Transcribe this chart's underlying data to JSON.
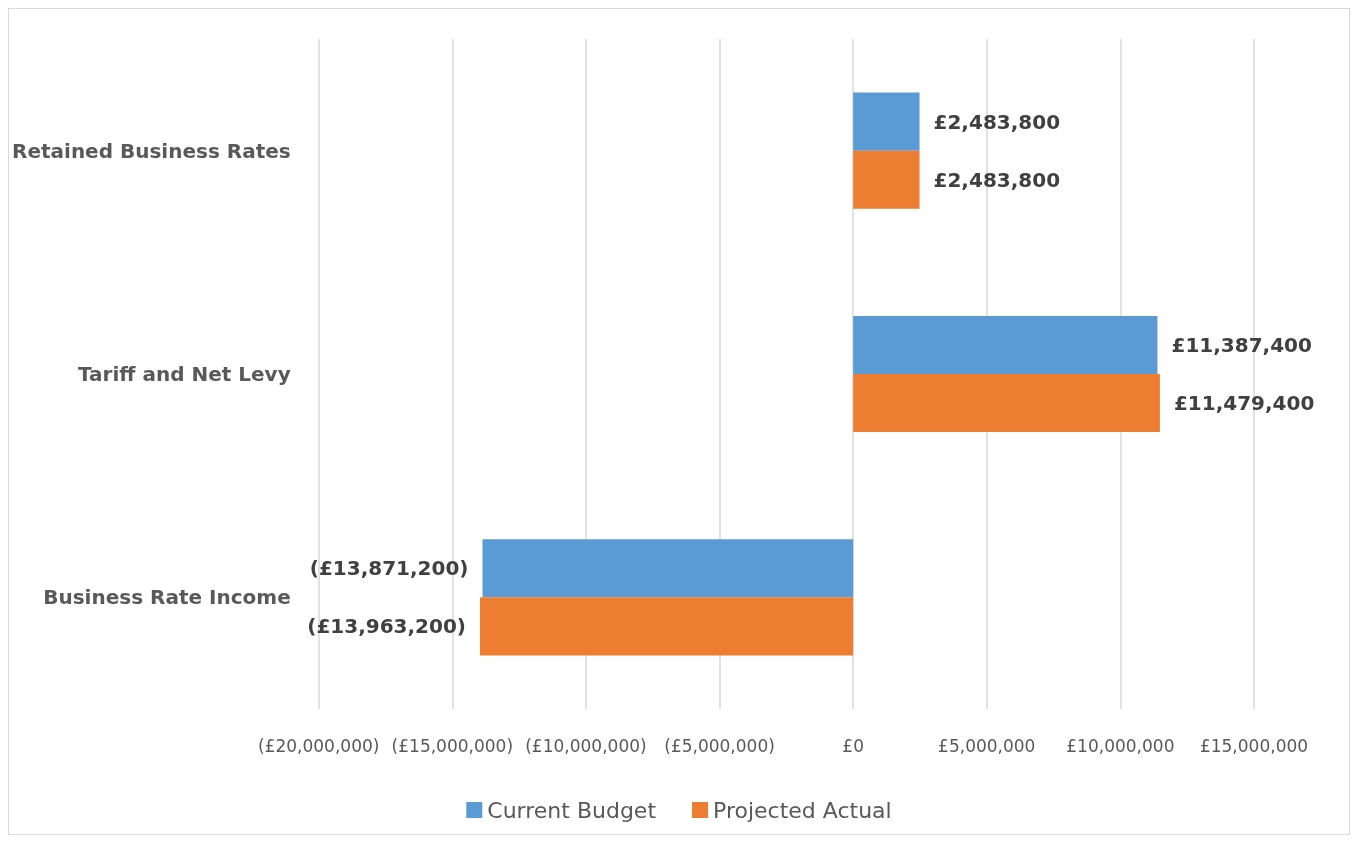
{
  "chart_data": {
    "type": "bar",
    "orientation": "horizontal",
    "categories": [
      "Retained Business Rates",
      "Tariff and Net Levy",
      "Business Rate Income"
    ],
    "series": [
      {
        "name": "Current Budget",
        "color": "#5b9bd5",
        "values": [
          2483800,
          11387400,
          -13871200
        ],
        "value_labels": [
          "£2,483,800",
          "£11,387,400",
          "(£13,871,200)"
        ]
      },
      {
        "name": "Projected Actual",
        "color": "#ed7d31",
        "values": [
          2483800,
          11479400,
          -13963200
        ],
        "value_labels": [
          "£2,483,800",
          "£11,479,400",
          "(£13,963,200)"
        ]
      }
    ],
    "xlim": [
      -20000000,
      15000000
    ],
    "xticks": [
      {
        "value": -20000000,
        "label": "(£20,000,000)"
      },
      {
        "value": -15000000,
        "label": "(£15,000,000)"
      },
      {
        "value": -10000000,
        "label": "(£10,000,000)"
      },
      {
        "value": -5000000,
        "label": "(£5,000,000)"
      },
      {
        "value": 0,
        "label": "£0"
      },
      {
        "value": 5000000,
        "label": "£5,000,000"
      },
      {
        "value": 10000000,
        "label": "£10,000,000"
      },
      {
        "value": 15000000,
        "label": "£15,000,000"
      }
    ],
    "grid": "x",
    "legend": "bottom"
  }
}
